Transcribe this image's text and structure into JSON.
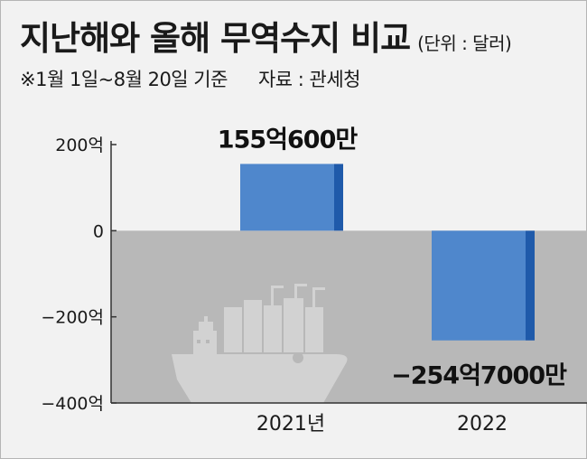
{
  "header": {
    "title": "지난해와 올해 무역수지 비교",
    "unit": "(단위 : 달러)",
    "period_note": "※1월 1일~8월 20일 기준",
    "source": "자료 : 관세청"
  },
  "chart_data": {
    "type": "bar",
    "title": "지난해와 올해 무역수지 비교",
    "ylabel": "",
    "xlabel": "",
    "categories": [
      "2021년",
      "2022"
    ],
    "values": [
      155.06,
      -254.7
    ],
    "data_labels": [
      "155억600만",
      "−254억7000만"
    ],
    "ylim": [
      -400,
      200
    ],
    "yticks": [
      200,
      0,
      -200,
      -400
    ],
    "ytick_labels": [
      "200억",
      "0",
      "−200억",
      "−400억"
    ],
    "grid": false,
    "legend": "none"
  },
  "colors": {
    "bar_face": "#4f87cc",
    "bar_side": "#1f5aaa",
    "negative_region": "#b8b8b8",
    "background": "#f2f2f2",
    "axis": "#333333",
    "ship": "#d2d2d2"
  },
  "decor": {
    "icon": "cargo-ship-icon"
  }
}
